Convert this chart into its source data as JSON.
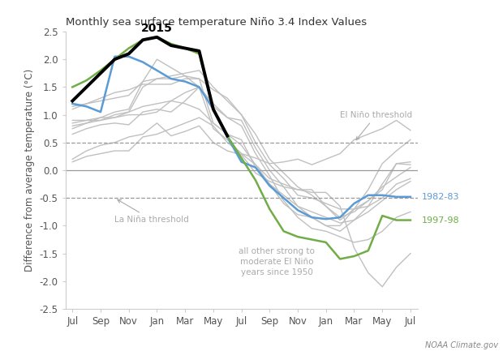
{
  "title": "Monthly sea surface temperature Niño 3.4 Index Values",
  "ylabel": "Difference from average temperature (°C)",
  "source_text": "NOAA Climate.gov",
  "x_labels": [
    "Jul",
    "Sep",
    "Nov",
    "Jan",
    "Mar",
    "May",
    "Jul",
    "Sep",
    "Nov",
    "Jan",
    "Mar",
    "May",
    "Jul"
  ],
  "x_ticks": [
    0,
    2,
    4,
    6,
    8,
    10,
    12,
    14,
    16,
    18,
    20,
    22,
    24
  ],
  "ylim": [
    -2.5,
    2.5
  ],
  "el_nino_threshold": 0.5,
  "la_nina_threshold": -0.5,
  "line_2015": [
    1.25,
    1.5,
    1.75,
    2.0,
    2.1,
    2.35,
    2.4,
    2.25,
    2.2,
    2.15,
    1.1,
    0.62,
    null,
    null,
    null,
    null,
    null,
    null,
    null,
    null,
    null,
    null,
    null,
    null,
    null
  ],
  "line_1982": [
    1.2,
    1.15,
    1.05,
    2.05,
    2.05,
    1.95,
    1.8,
    1.65,
    1.6,
    1.5,
    1.1,
    0.6,
    0.15,
    0.05,
    -0.28,
    -0.5,
    -0.72,
    -0.85,
    -0.88,
    -0.85,
    -0.6,
    -0.45,
    -0.45,
    -0.48,
    -0.48
  ],
  "line_1997": [
    1.5,
    1.62,
    1.8,
    2.0,
    2.2,
    2.35,
    2.4,
    2.28,
    2.2,
    2.1,
    1.1,
    0.62,
    0.22,
    -0.18,
    -0.7,
    -1.1,
    -1.2,
    -1.25,
    -1.3,
    -1.6,
    -1.55,
    -1.45,
    -0.82,
    -0.9,
    -0.9
  ],
  "gray_lines": [
    [
      0.65,
      0.75,
      0.82,
      0.85,
      0.82,
      1.05,
      1.1,
      1.05,
      1.25,
      1.5,
      0.75,
      0.55,
      0.3,
      0.22,
      0.12,
      0.15,
      0.2,
      0.1,
      0.2,
      0.3,
      0.55,
      0.65,
      0.75,
      0.9,
      0.72
    ],
    [
      0.2,
      0.35,
      0.45,
      0.5,
      0.6,
      0.65,
      0.85,
      0.62,
      0.7,
      0.8,
      0.5,
      0.35,
      0.28,
      -0.05,
      -0.2,
      -0.3,
      -0.35,
      -0.35,
      -0.65,
      -0.9,
      -0.7,
      -0.55,
      -0.35,
      0.12,
      0.1
    ],
    [
      1.1,
      1.2,
      1.3,
      1.4,
      1.45,
      1.55,
      1.55,
      1.55,
      1.65,
      1.65,
      1.45,
      1.3,
      1.0,
      0.5,
      0.1,
      -0.15,
      -0.45,
      -0.5,
      -0.6,
      -0.7,
      -0.7,
      -0.65,
      -0.5,
      -0.25,
      -0.15
    ],
    [
      0.8,
      0.85,
      0.95,
      1.05,
      1.1,
      1.6,
      2.0,
      1.85,
      1.7,
      1.5,
      1.2,
      0.95,
      0.8,
      0.3,
      -0.1,
      -0.55,
      -0.85,
      -1.05,
      -1.1,
      -1.2,
      -1.3,
      -1.25,
      -1.1,
      -0.85,
      -0.75
    ],
    [
      0.15,
      0.25,
      0.3,
      0.35,
      0.35,
      0.6,
      0.65,
      0.75,
      0.85,
      0.95,
      0.8,
      0.5,
      0.3,
      0.1,
      -0.15,
      -0.25,
      -0.35,
      -0.4,
      -0.4,
      -0.65,
      -1.4,
      -1.85,
      -2.1,
      -1.75,
      -1.5
    ],
    [
      0.85,
      0.9,
      0.9,
      1.0,
      1.05,
      1.15,
      1.2,
      1.25,
      1.2,
      1.1,
      0.85,
      0.65,
      0.45,
      0.1,
      -0.25,
      -0.45,
      -0.65,
      -0.85,
      -1.0,
      -1.1,
      -0.9,
      -0.65,
      -0.25,
      0.12,
      0.15
    ],
    [
      0.75,
      0.85,
      0.9,
      0.95,
      1.05,
      1.5,
      1.65,
      1.65,
      1.7,
      1.65,
      0.85,
      0.65,
      0.55,
      0.05,
      -0.25,
      -0.6,
      -0.8,
      -0.85,
      -1.0,
      -1.0,
      -0.7,
      -0.35,
      0.12,
      0.35,
      0.55
    ],
    [
      1.15,
      1.2,
      1.25,
      1.3,
      1.35,
      1.6,
      1.65,
      1.7,
      1.75,
      1.8,
      1.5,
      1.25,
      1.0,
      0.65,
      0.2,
      -0.05,
      -0.3,
      -0.45,
      -0.65,
      -0.85,
      -0.75,
      -0.55,
      -0.3,
      -0.12,
      0.05
    ],
    [
      0.9,
      0.9,
      0.95,
      0.95,
      1.0,
      1.0,
      1.05,
      1.25,
      1.4,
      1.5,
      1.15,
      0.95,
      0.9,
      0.4,
      0.0,
      -0.3,
      -0.65,
      -0.75,
      -0.85,
      -0.95,
      -0.9,
      -0.75,
      -0.55,
      -0.35,
      -0.2
    ]
  ],
  "color_2015": "#000000",
  "color_1982": "#5b9bd5",
  "color_1997": "#70ad47",
  "color_gray": "#c0c0c0",
  "label_2015": "2015",
  "label_1982": "1982-83",
  "label_1997": "1997-98",
  "annotation_el_nino": "El Niño threshold",
  "annotation_la_nina": "La Niña threshold",
  "annotation_gray": "all other strong to\nmoderate El Niño\nyears since 1950",
  "background_color": "#ffffff",
  "spine_color": "#cccccc",
  "tick_label_color": "#555555",
  "axis_label_color": "#555555",
  "threshold_color": "#999999",
  "annotation_color": "#aaaaaa"
}
